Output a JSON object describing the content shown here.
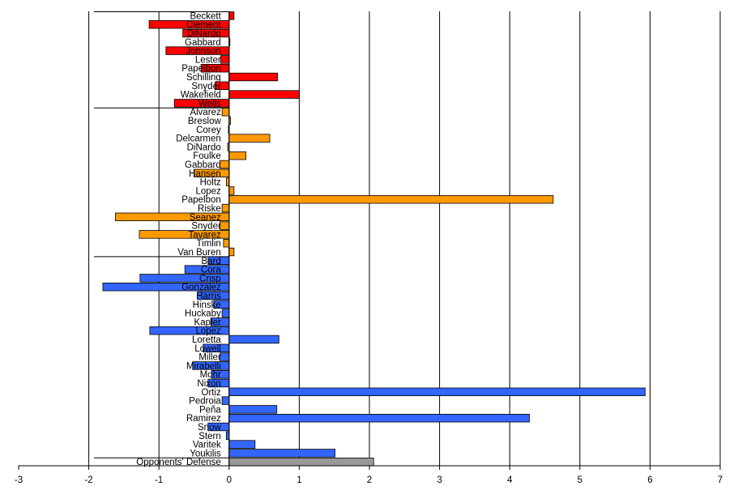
{
  "chart_data": {
    "type": "bar",
    "orientation": "horizontal",
    "title": "",
    "xlabel": "",
    "ylabel": "",
    "xlim": [
      -3,
      7
    ],
    "xticks": [
      -3,
      -2,
      -1,
      0,
      1,
      2,
      3,
      4,
      5,
      6,
      7
    ],
    "grid": "vertical major gridlines",
    "legend": "none",
    "colors": {
      "group1": "#ff0000",
      "group2": "#ff9900",
      "group3": "#3366ff",
      "defense": "#999999",
      "edge": "#000000",
      "grid": "#000000"
    },
    "series": [
      {
        "group": "group1",
        "categories": [
          "Beckett",
          "Clement",
          "DiNardo",
          "Gabbard",
          "Johnson",
          "Lester",
          "Papelbon",
          "Schilling",
          "Snyder",
          "Wakefield",
          "Wells"
        ],
        "values": [
          0.07,
          -1.14,
          -0.66,
          0.01,
          -0.9,
          -0.12,
          -0.4,
          0.69,
          -0.2,
          1.0,
          -0.78
        ]
      },
      {
        "group": "group2",
        "categories": [
          "Alvarez",
          "Breslow",
          "Corey",
          "Delcarmen",
          "DiNardo",
          "Foulke",
          "Gabbard",
          "Hansen",
          "Holtz",
          "Lopez",
          "Papelbon",
          "Riske",
          "Seanez",
          "Snyder",
          "Tavarez",
          "Timlin",
          "Van Buren"
        ],
        "values": [
          -0.1,
          0.02,
          -0.01,
          0.58,
          -0.02,
          0.24,
          -0.13,
          -0.5,
          -0.04,
          0.07,
          4.62,
          -0.1,
          -1.62,
          -0.13,
          -1.28,
          -0.08,
          0.07
        ]
      },
      {
        "group": "group3",
        "categories": [
          "Bard",
          "Cora",
          "Crisp",
          "Gonzalez",
          "Harris",
          "Hinske",
          "Huckaby",
          "Kapler",
          "Lopez",
          "Loretta",
          "Lowell",
          "Miller",
          "Mirabelli",
          "Mohr",
          "Nixon",
          "Ortiz",
          "Pedroia",
          "Peña",
          "Ramirez",
          "Snow",
          "Stern",
          "Varitek",
          "Youkilis"
        ],
        "values": [
          -0.3,
          -0.63,
          -1.27,
          -1.8,
          -0.45,
          -0.22,
          -0.1,
          -0.26,
          -1.13,
          0.71,
          -0.37,
          -0.13,
          -0.52,
          -0.25,
          -0.3,
          5.93,
          -0.1,
          0.68,
          4.28,
          -0.3,
          -0.04,
          0.37,
          1.51
        ]
      },
      {
        "group": "defense",
        "categories": [
          "Opponents' Defense"
        ],
        "values": [
          2.06
        ]
      }
    ]
  }
}
